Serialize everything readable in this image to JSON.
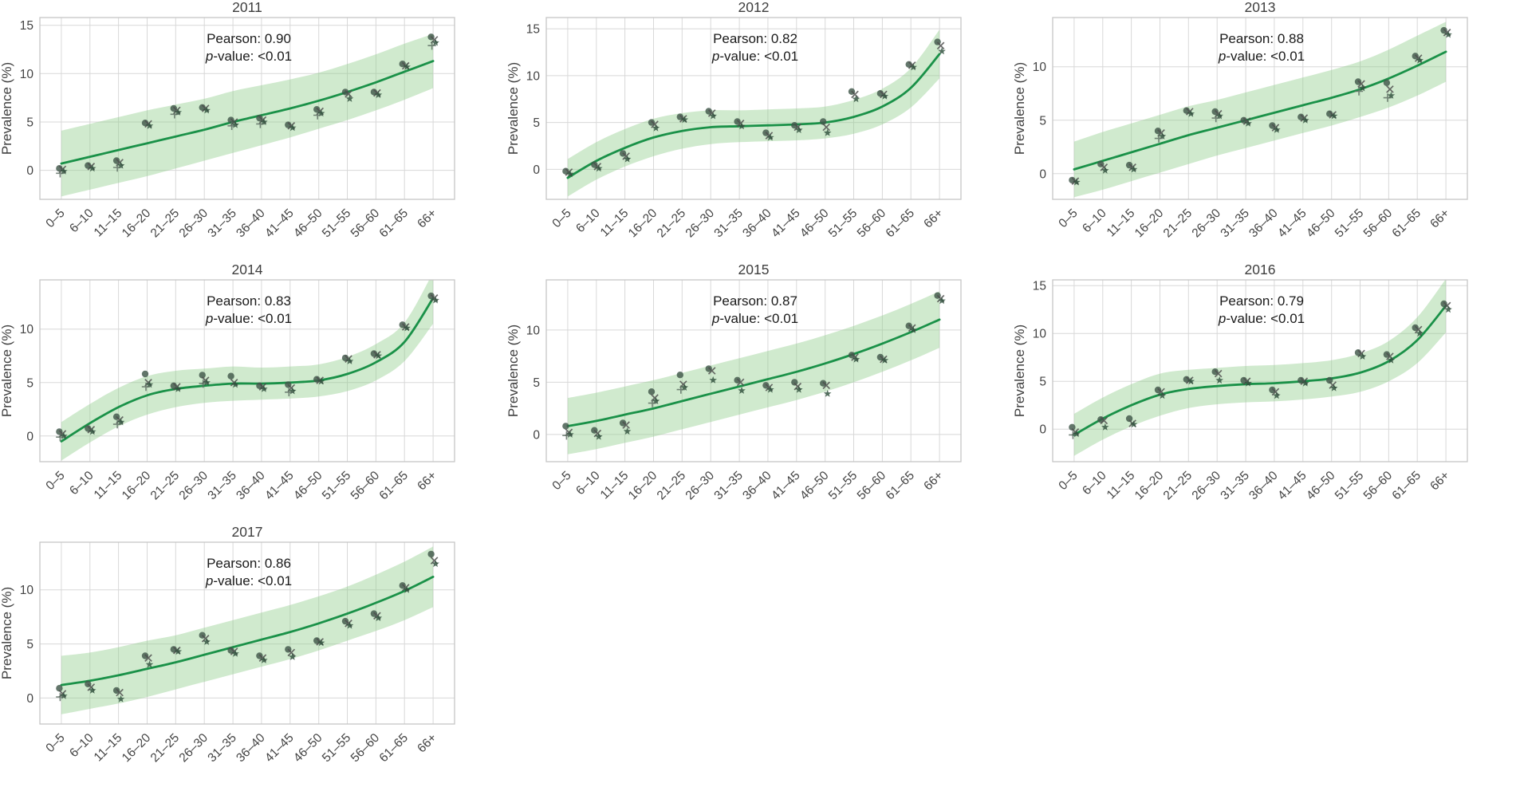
{
  "figure": {
    "ylabel": "Prevalence (%)",
    "pearson_label": "Pearson:",
    "pvalue_label_italic_part": "p",
    "pvalue_label_rest": "-value:",
    "categories": [
      "0–5",
      "6–10",
      "11–15",
      "16–20",
      "21–25",
      "26–30",
      "31–35",
      "36–40",
      "41–45",
      "46–50",
      "51–55",
      "56–60",
      "61–65",
      "66+"
    ]
  },
  "style": {
    "trend_color": "#1a9148",
    "band_fill": "#8fce8a",
    "band_opacity": 0.42,
    "marker_colors": [
      "#41584a",
      "#4d4d4d",
      "#2e4f3c",
      "#5a6b60",
      "#3a3a3a"
    ],
    "marker_opacity": 0.82,
    "grid_color": "#d8d8d8",
    "spine_color": "#c6c6c6",
    "title_color": "#3e3e3e",
    "tick_color": "#444444",
    "annotation_color": "#1a1a1a",
    "marker_shapes": [
      "circle",
      "x",
      "star",
      "plus",
      "square"
    ]
  },
  "chart_data": [
    {
      "type": "scatter",
      "title": "2011",
      "pearson": "0.90",
      "p_value": "<0.01",
      "ylabel": "Prevalence (%)",
      "categories": [
        "0–5",
        "6–10",
        "11–15",
        "16–20",
        "21–25",
        "26–30",
        "31–35",
        "36–40",
        "41–45",
        "46–50",
        "51–55",
        "56–60",
        "61–65",
        "66+"
      ],
      "yticks": [
        0,
        5,
        10,
        15
      ],
      "ylim": [
        -3.0,
        15.8
      ],
      "points": [
        [
          0.2,
          0.1,
          -0.1,
          -0.3
        ],
        [
          0.5,
          0.4,
          0.2
        ],
        [
          1.0,
          0.8,
          0.5,
          0.3
        ],
        [
          4.9,
          4.8,
          4.6
        ],
        [
          6.4,
          6.2,
          6.0,
          5.8
        ],
        [
          6.5,
          6.4,
          6.2
        ],
        [
          5.2,
          5.0,
          4.7,
          4.6
        ],
        [
          5.4,
          5.2,
          5.0,
          4.8
        ],
        [
          4.7,
          4.6,
          4.4
        ],
        [
          6.3,
          6.1,
          5.9,
          5.7
        ],
        [
          8.1,
          7.9,
          7.4
        ],
        [
          8.1,
          8.0,
          7.8
        ],
        [
          11.0,
          10.8,
          10.7
        ],
        [
          13.8,
          13.5,
          13.2,
          12.9
        ]
      ],
      "trend": [
        0.7,
        1.4,
        2.1,
        2.8,
        3.5,
        4.2,
        5.0,
        5.7,
        6.4,
        7.2,
        8.1,
        9.1,
        10.2,
        11.3
      ],
      "band_lower": [
        -2.7,
        -2.0,
        -1.3,
        -0.6,
        0.2,
        1.0,
        1.8,
        2.6,
        3.4,
        4.3,
        5.2,
        6.2,
        7.3,
        8.5
      ],
      "band_upper": [
        4.1,
        4.8,
        5.5,
        6.2,
        6.8,
        7.4,
        8.2,
        8.8,
        9.4,
        10.1,
        11.0,
        12.0,
        13.1,
        14.1
      ]
    },
    {
      "type": "scatter",
      "title": "2012",
      "pearson": "0.82",
      "p_value": "<0.01",
      "ylabel": "Prevalence (%)",
      "categories": [
        "0–5",
        "6–10",
        "11–15",
        "16–20",
        "21–25",
        "26–30",
        "31–35",
        "36–40",
        "41–45",
        "46–50",
        "51–55",
        "56–60",
        "61–65",
        "66+"
      ],
      "yticks": [
        0,
        5,
        10,
        15
      ],
      "ylim": [
        -3.2,
        16.2
      ],
      "points": [
        [
          -0.2,
          -0.3,
          -0.5
        ],
        [
          0.5,
          0.3,
          0.1
        ],
        [
          1.7,
          1.4,
          1.1
        ],
        [
          5.0,
          4.8,
          4.4
        ],
        [
          5.6,
          5.4,
          5.3
        ],
        [
          6.2,
          6.0,
          5.7
        ],
        [
          5.1,
          4.9,
          4.6
        ],
        [
          3.9,
          3.6,
          3.4
        ],
        [
          4.7,
          4.5,
          4.2
        ],
        [
          5.1,
          4.5,
          3.9
        ],
        [
          8.3,
          8.0,
          7.5
        ],
        [
          8.1,
          8.0,
          7.8
        ],
        [
          11.2,
          11.1,
          10.9
        ],
        [
          13.6,
          13.2,
          12.6
        ]
      ],
      "trend": [
        -0.9,
        0.9,
        2.3,
        3.4,
        4.1,
        4.5,
        4.6,
        4.7,
        4.8,
        5.0,
        5.6,
        6.7,
        8.7,
        12.3
      ],
      "band_lower": [
        -2.9,
        -1.1,
        0.3,
        1.4,
        2.2,
        2.7,
        2.9,
        3.0,
        3.1,
        3.3,
        3.8,
        4.8,
        6.6,
        9.7
      ],
      "band_upper": [
        1.1,
        2.9,
        4.3,
        5.4,
        6.0,
        6.3,
        6.3,
        6.4,
        6.5,
        6.7,
        7.4,
        8.6,
        10.8,
        14.9
      ]
    },
    {
      "type": "scatter",
      "title": "2013",
      "pearson": "0.88",
      "p_value": "<0.01",
      "ylabel": "Prevalence (%)",
      "categories": [
        "0–5",
        "6–10",
        "11–15",
        "16–20",
        "21–25",
        "26–30",
        "31–35",
        "36–40",
        "41–45",
        "46–50",
        "51–55",
        "56–60",
        "61–65",
        "66+"
      ],
      "yticks": [
        0,
        5,
        10
      ],
      "ylim": [
        -2.4,
        14.6
      ],
      "points": [
        [
          -0.6,
          -0.7,
          -0.8
        ],
        [
          0.9,
          0.6,
          0.3
        ],
        [
          0.8,
          0.6,
          0.4
        ],
        [
          4.0,
          3.8,
          3.5,
          3.3
        ],
        [
          5.9,
          5.8,
          5.6
        ],
        [
          5.8,
          5.6,
          5.4,
          5.2
        ],
        [
          5.0,
          4.9,
          4.7
        ],
        [
          4.5,
          4.3,
          4.1
        ],
        [
          5.3,
          5.2,
          5.0
        ],
        [
          5.6,
          5.5,
          5.4
        ],
        [
          8.6,
          8.4,
          8.0,
          7.7
        ],
        [
          8.5,
          7.9,
          7.3,
          7.1
        ],
        [
          11.0,
          10.8,
          10.6
        ],
        [
          13.4,
          13.2,
          13.0
        ]
      ],
      "trend": [
        0.4,
        1.2,
        2.0,
        2.8,
        3.6,
        4.3,
        5.0,
        5.7,
        6.4,
        7.1,
        7.9,
        8.9,
        10.1,
        11.4
      ],
      "band_lower": [
        -2.2,
        -1.5,
        -0.7,
        0.1,
        0.9,
        1.7,
        2.4,
        3.1,
        3.8,
        4.5,
        5.3,
        6.2,
        7.3,
        8.6
      ],
      "band_upper": [
        3.0,
        3.9,
        4.7,
        5.5,
        6.3,
        6.9,
        7.6,
        8.3,
        9.0,
        9.7,
        10.5,
        11.6,
        12.9,
        14.2
      ]
    },
    {
      "type": "scatter",
      "title": "2014",
      "pearson": "0.83",
      "p_value": "<0.01",
      "ylabel": "Prevalence (%)",
      "categories": [
        "0–5",
        "6–10",
        "11–15",
        "16–20",
        "21–25",
        "26–30",
        "31–35",
        "36–40",
        "41–45",
        "46–50",
        "51–55",
        "56–60",
        "61–65",
        "66+"
      ],
      "yticks": [
        0,
        5,
        10
      ],
      "ylim": [
        -2.4,
        14.6
      ],
      "points": [
        [
          0.4,
          0.2,
          0.0,
          -0.1
        ],
        [
          0.7,
          0.6,
          0.4
        ],
        [
          1.8,
          1.5,
          1.3,
          1.1
        ],
        [
          5.8,
          5.0,
          4.8,
          4.6
        ],
        [
          4.7,
          4.6,
          4.4
        ],
        [
          5.7,
          5.2,
          5.0,
          4.9
        ],
        [
          5.6,
          5.0,
          4.8
        ],
        [
          4.7,
          4.6,
          4.4
        ],
        [
          4.8,
          4.5,
          4.2,
          4.1
        ],
        [
          5.3,
          5.2,
          5.1
        ],
        [
          7.3,
          7.2,
          7.0
        ],
        [
          7.7,
          7.6,
          7.5
        ],
        [
          10.4,
          10.2,
          10.1
        ],
        [
          13.1,
          12.9,
          12.7
        ]
      ],
      "trend": [
        -0.5,
        1.2,
        2.7,
        3.8,
        4.4,
        4.7,
        4.9,
        4.9,
        5.0,
        5.2,
        5.8,
        6.9,
        8.8,
        12.9
      ],
      "band_lower": [
        -2.3,
        -0.6,
        0.9,
        2.0,
        2.7,
        3.1,
        3.3,
        3.4,
        3.5,
        3.7,
        4.2,
        5.2,
        7.0,
        10.5
      ],
      "band_upper": [
        1.3,
        3.0,
        4.5,
        5.6,
        6.1,
        6.3,
        6.5,
        6.4,
        6.5,
        6.7,
        7.4,
        8.6,
        10.6,
        15.3
      ]
    },
    {
      "type": "scatter",
      "title": "2015",
      "pearson": "0.87",
      "p_value": "<0.01",
      "ylabel": "Prevalence (%)",
      "categories": [
        "0–5",
        "6–10",
        "11–15",
        "16–20",
        "21–25",
        "26–30",
        "31–35",
        "36–40",
        "41–45",
        "46–50",
        "51–55",
        "56–60",
        "61–65",
        "66+"
      ],
      "yticks": [
        0,
        5,
        10
      ],
      "ylim": [
        -2.6,
        14.8
      ],
      "points": [
        [
          0.8,
          0.2,
          0.0,
          -0.1
        ],
        [
          0.4,
          0.1,
          -0.2
        ],
        [
          1.1,
          0.9,
          0.3
        ],
        [
          4.1,
          3.5,
          3.2,
          3.0
        ],
        [
          5.7,
          4.8,
          4.5,
          4.3
        ],
        [
          6.3,
          6.1,
          5.2
        ],
        [
          5.2,
          5.0,
          4.2
        ],
        [
          4.7,
          4.5,
          4.3
        ],
        [
          5.0,
          4.6,
          4.3
        ],
        [
          4.9,
          4.7,
          3.9
        ],
        [
          7.6,
          7.4,
          7.2
        ],
        [
          7.4,
          7.2,
          7.1
        ],
        [
          10.4,
          10.2,
          10.0
        ],
        [
          13.3,
          13.0,
          12.8
        ]
      ],
      "trend": [
        0.8,
        1.3,
        1.9,
        2.5,
        3.2,
        3.9,
        4.6,
        5.3,
        6.0,
        6.8,
        7.7,
        8.7,
        9.8,
        11.0
      ],
      "band_lower": [
        -1.9,
        -1.4,
        -0.8,
        -0.2,
        0.5,
        1.2,
        1.9,
        2.6,
        3.3,
        4.1,
        5.0,
        6.0,
        7.1,
        8.3
      ],
      "band_upper": [
        3.5,
        4.0,
        4.6,
        5.2,
        5.9,
        6.6,
        7.3,
        8.0,
        8.7,
        9.5,
        10.4,
        11.4,
        12.5,
        13.7
      ]
    },
    {
      "type": "scatter",
      "title": "2016",
      "pearson": "0.79",
      "p_value": "<0.01",
      "ylabel": "Prevalence (%)",
      "categories": [
        "0–5",
        "6–10",
        "11–15",
        "16–20",
        "21–25",
        "26–30",
        "31–35",
        "36–40",
        "41–45",
        "46–50",
        "51–55",
        "56–60",
        "61–65",
        "66+"
      ],
      "yticks": [
        0,
        5,
        10,
        15
      ],
      "ylim": [
        -3.4,
        15.6
      ],
      "points": [
        [
          0.2,
          -0.3,
          -0.5,
          -0.6
        ],
        [
          1.0,
          0.9,
          0.2
        ],
        [
          1.1,
          0.6,
          0.5
        ],
        [
          4.1,
          3.9,
          3.5
        ],
        [
          5.2,
          5.1,
          5.0
        ],
        [
          6.0,
          5.8,
          5.1
        ],
        [
          5.1,
          5.0,
          4.8
        ],
        [
          4.1,
          3.9,
          3.5
        ],
        [
          5.1,
          5.0,
          4.8
        ],
        [
          5.1,
          4.6,
          4.3
        ],
        [
          8.0,
          7.9,
          7.6
        ],
        [
          7.8,
          7.6,
          7.2
        ],
        [
          10.6,
          10.4,
          10.0
        ],
        [
          13.1,
          12.9,
          12.5
        ]
      ],
      "trend": [
        -0.6,
        1.1,
        2.5,
        3.6,
        4.2,
        4.5,
        4.7,
        4.8,
        5.0,
        5.3,
        5.9,
        7.1,
        9.3,
        12.9
      ],
      "band_lower": [
        -2.8,
        -1.1,
        0.3,
        1.4,
        2.2,
        2.6,
        2.8,
        2.9,
        3.1,
        3.4,
        3.9,
        5.0,
        6.9,
        10.1
      ],
      "band_upper": [
        1.6,
        3.3,
        4.7,
        5.8,
        6.2,
        6.4,
        6.6,
        6.7,
        6.9,
        7.2,
        7.9,
        9.2,
        11.7,
        15.7
      ]
    },
    {
      "type": "scatter",
      "title": "2017",
      "pearson": "0.86",
      "p_value": "<0.01",
      "ylabel": "Prevalence (%)",
      "categories": [
        "0–5",
        "6–10",
        "11–15",
        "16–20",
        "21–25",
        "26–30",
        "31–35",
        "36–40",
        "41–45",
        "46–50",
        "51–55",
        "56–60",
        "61–65",
        "66+"
      ],
      "yticks": [
        0,
        5,
        10
      ],
      "ylim": [
        -2.4,
        14.4
      ],
      "points": [
        [
          0.9,
          0.4,
          0.2,
          0.1
        ],
        [
          1.3,
          1.0,
          0.7
        ],
        [
          0.7,
          0.5,
          -0.1
        ],
        [
          3.9,
          3.7,
          3.1
        ],
        [
          4.5,
          4.4,
          4.3
        ],
        [
          5.8,
          5.5,
          5.2
        ],
        [
          4.4,
          4.3,
          4.1
        ],
        [
          3.9,
          3.7,
          3.5
        ],
        [
          4.5,
          4.2,
          3.8
        ],
        [
          5.3,
          5.2,
          5.1
        ],
        [
          7.1,
          6.9,
          6.7
        ],
        [
          7.8,
          7.6,
          7.4
        ],
        [
          10.4,
          10.2,
          10.0
        ],
        [
          13.3,
          12.7,
          12.4
        ]
      ],
      "trend": [
        1.2,
        1.6,
        2.1,
        2.7,
        3.3,
        4.0,
        4.7,
        5.4,
        6.1,
        6.9,
        7.8,
        8.8,
        9.9,
        11.2
      ],
      "band_lower": [
        -1.5,
        -1.0,
        -0.5,
        0.1,
        0.8,
        1.5,
        2.2,
        2.9,
        3.6,
        4.4,
        5.3,
        6.2,
        7.2,
        8.4
      ],
      "band_upper": [
        3.9,
        4.2,
        4.7,
        5.3,
        5.8,
        6.5,
        7.2,
        7.9,
        8.6,
        9.4,
        10.3,
        11.4,
        12.6,
        14.0
      ]
    }
  ]
}
